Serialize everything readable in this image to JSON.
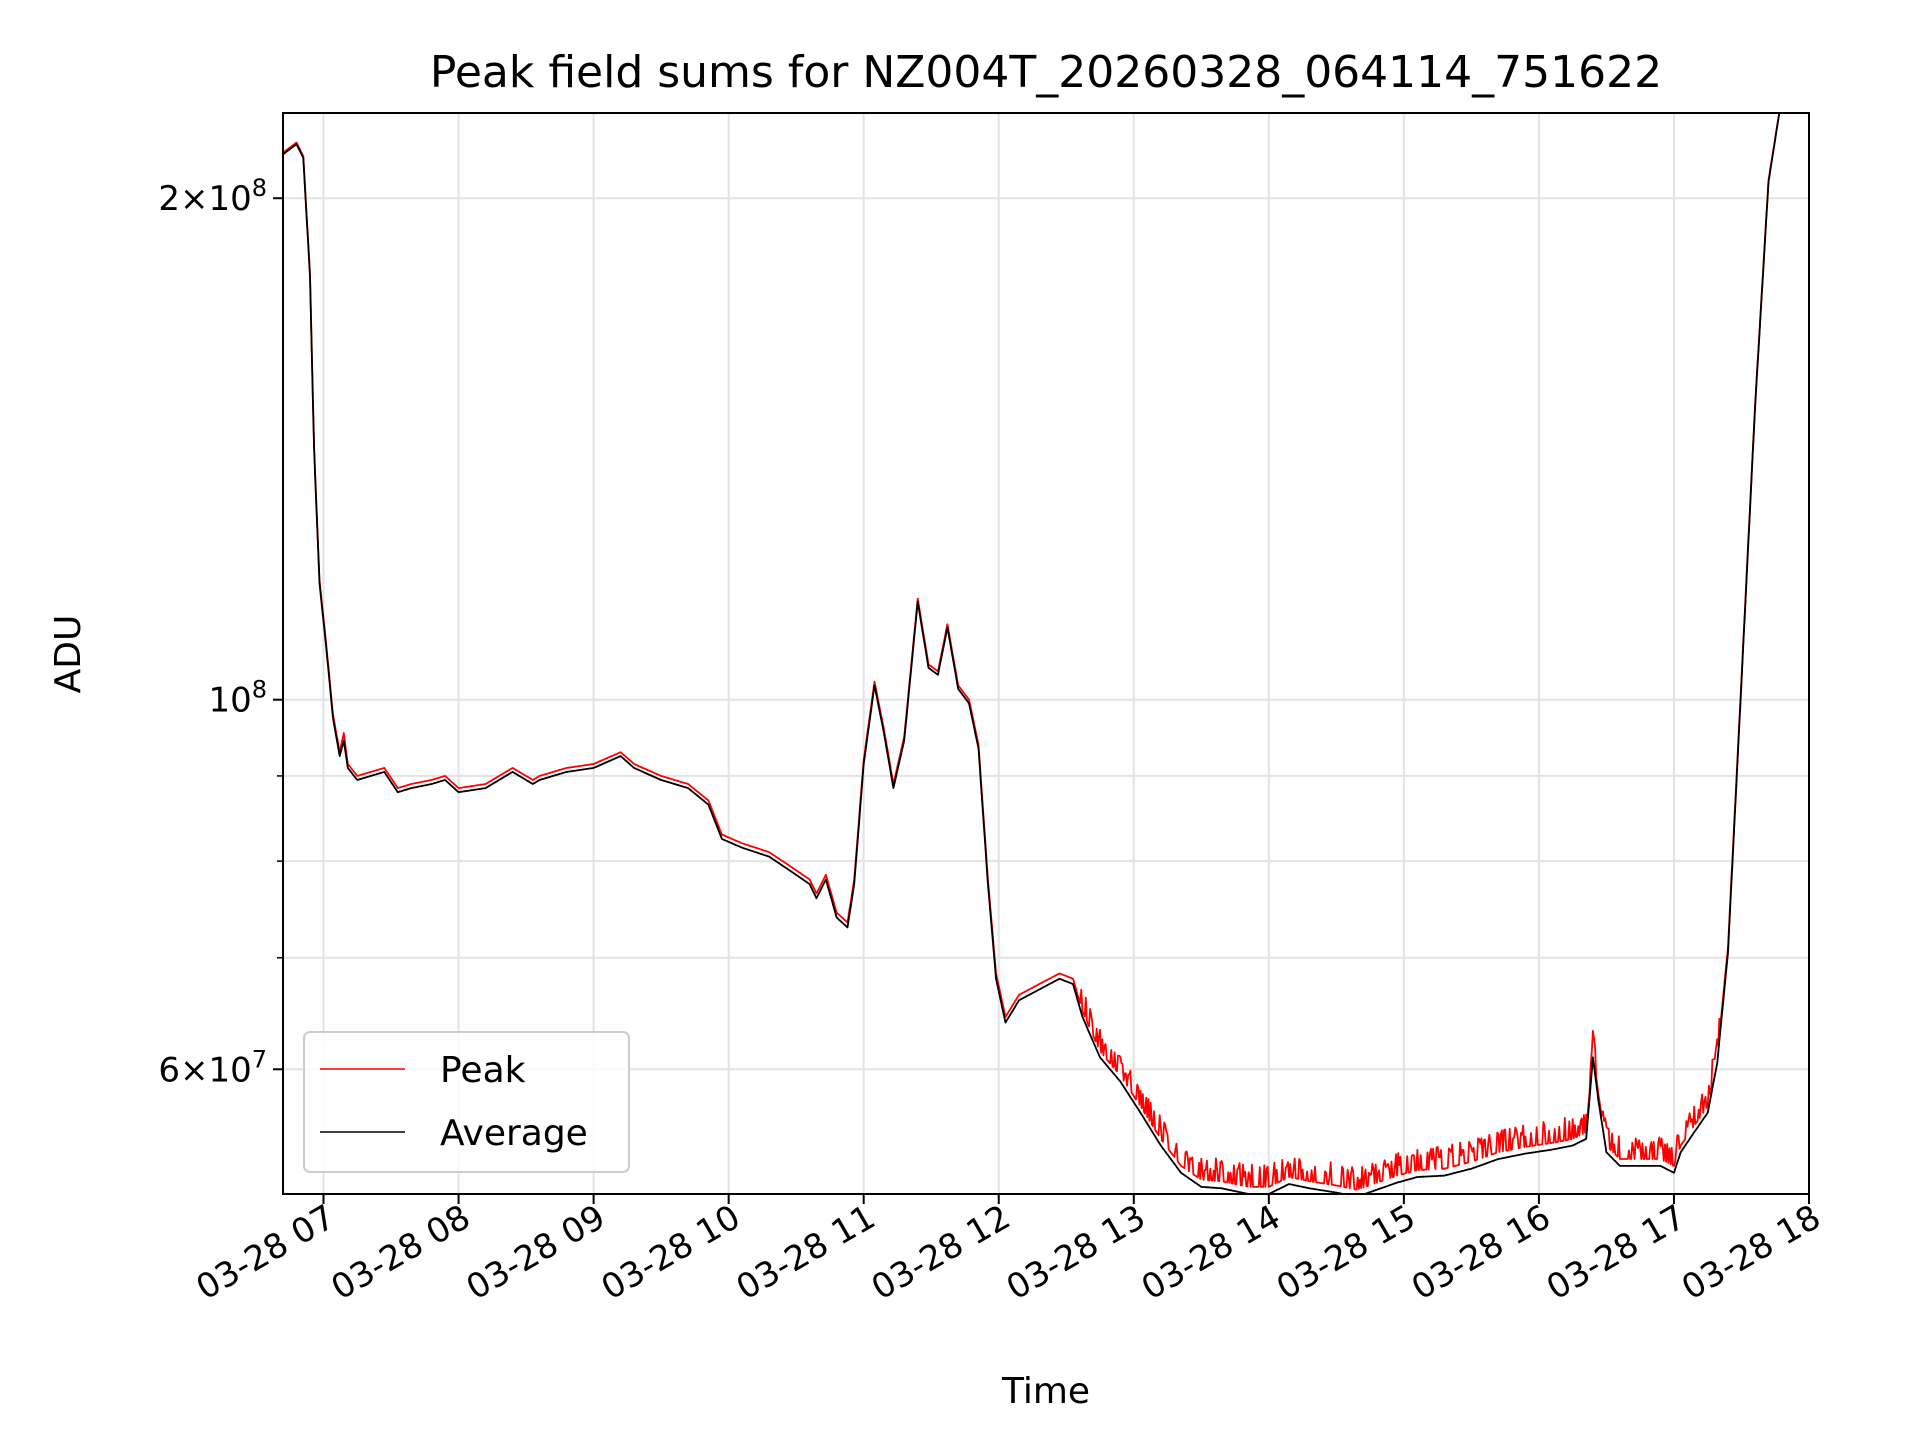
{
  "chart_data": {
    "type": "line",
    "title": "Peak field sums for NZ004T_20260328_064114_751622",
    "xlabel": "Time",
    "ylabel": "ADU",
    "yscale": "log",
    "ylim": [
      50500000,
      225000000
    ],
    "xlim": [
      6.7,
      18.0
    ],
    "grid": true,
    "legend_position": "lower-left",
    "x_ticks": [
      {
        "value": 7,
        "label": "03-28 07"
      },
      {
        "value": 8,
        "label": "03-28 08"
      },
      {
        "value": 9,
        "label": "03-28 09"
      },
      {
        "value": 10,
        "label": "03-28 10"
      },
      {
        "value": 11,
        "label": "03-28 11"
      },
      {
        "value": 12,
        "label": "03-28 12"
      },
      {
        "value": 13,
        "label": "03-28 13"
      },
      {
        "value": 14,
        "label": "03-28 14"
      },
      {
        "value": 15,
        "label": "03-28 15"
      },
      {
        "value": 16,
        "label": "03-28 16"
      },
      {
        "value": 17,
        "label": "03-28 17"
      },
      {
        "value": 18,
        "label": "03-28 18"
      }
    ],
    "y_major_ticks": [
      {
        "value": 60000000,
        "base": "6",
        "exp": "7"
      },
      {
        "value": 100000000,
        "base": "",
        "exp": "8"
      },
      {
        "value": 200000000,
        "base": "2",
        "exp": "8"
      }
    ],
    "y_minor_ticks": [
      70000000,
      80000000,
      90000000
    ],
    "series": [
      {
        "name": "Peak",
        "color": "#ff0000",
        "noise": true,
        "points": [
          [
            6.7,
            213000000
          ],
          [
            6.8,
            216000000
          ],
          [
            6.85,
            212000000
          ],
          [
            6.9,
            180000000
          ],
          [
            6.93,
            142000000
          ],
          [
            6.97,
            118000000
          ],
          [
            7.02,
            108000000
          ],
          [
            7.07,
            98000000
          ],
          [
            7.12,
            93000000
          ],
          [
            7.15,
            95500000
          ],
          [
            7.18,
            91500000
          ],
          [
            7.25,
            90000000
          ],
          [
            7.35,
            90500000
          ],
          [
            7.45,
            91000000
          ],
          [
            7.55,
            88500000
          ],
          [
            7.65,
            89000000
          ],
          [
            7.8,
            89500000
          ],
          [
            7.9,
            90000000
          ],
          [
            8.0,
            88500000
          ],
          [
            8.2,
            89000000
          ],
          [
            8.4,
            91000000
          ],
          [
            8.55,
            89500000
          ],
          [
            8.6,
            90000000
          ],
          [
            8.8,
            91000000
          ],
          [
            9.0,
            91500000
          ],
          [
            9.2,
            93000000
          ],
          [
            9.3,
            91500000
          ],
          [
            9.5,
            90000000
          ],
          [
            9.7,
            89000000
          ],
          [
            9.85,
            87000000
          ],
          [
            9.95,
            83000000
          ],
          [
            10.1,
            82000000
          ],
          [
            10.3,
            81000000
          ],
          [
            10.45,
            79500000
          ],
          [
            10.6,
            78000000
          ],
          [
            10.65,
            76500000
          ],
          [
            10.72,
            78500000
          ],
          [
            10.8,
            74500000
          ],
          [
            10.88,
            73500000
          ],
          [
            10.93,
            78000000
          ],
          [
            11.0,
            92000000
          ],
          [
            11.08,
            102500000
          ],
          [
            11.15,
            96000000
          ],
          [
            11.22,
            89000000
          ],
          [
            11.3,
            95000000
          ],
          [
            11.4,
            115000000
          ],
          [
            11.48,
            105000000
          ],
          [
            11.55,
            104000000
          ],
          [
            11.62,
            111000000
          ],
          [
            11.7,
            102000000
          ],
          [
            11.78,
            100000000
          ],
          [
            11.85,
            94000000
          ],
          [
            11.92,
            78000000
          ],
          [
            11.98,
            68500000
          ],
          [
            12.05,
            64500000
          ],
          [
            12.15,
            66500000
          ],
          [
            12.3,
            67500000
          ],
          [
            12.45,
            68500000
          ],
          [
            12.55,
            68000000
          ],
          [
            12.62,
            65000000
          ],
          [
            12.75,
            61500000
          ],
          [
            12.9,
            59500000
          ],
          [
            13.05,
            57000000
          ],
          [
            13.2,
            54500000
          ],
          [
            13.35,
            52500000
          ],
          [
            13.5,
            51500000
          ],
          [
            13.65,
            51400000
          ],
          [
            13.85,
            51000000
          ],
          [
            14.0,
            51000000
          ],
          [
            14.15,
            51700000
          ],
          [
            14.3,
            51400000
          ],
          [
            14.5,
            51100000
          ],
          [
            14.65,
            50800000
          ],
          [
            14.8,
            51300000
          ],
          [
            14.95,
            51800000
          ],
          [
            15.1,
            52200000
          ],
          [
            15.3,
            52300000
          ],
          [
            15.5,
            52800000
          ],
          [
            15.7,
            53500000
          ],
          [
            15.9,
            53900000
          ],
          [
            16.1,
            54200000
          ],
          [
            16.25,
            54500000
          ],
          [
            16.35,
            55000000
          ],
          [
            16.4,
            61500000
          ],
          [
            16.44,
            58000000
          ],
          [
            16.5,
            54000000
          ],
          [
            16.6,
            53000000
          ],
          [
            16.75,
            53000000
          ],
          [
            16.9,
            53000000
          ],
          [
            17.0,
            52500000
          ],
          [
            17.05,
            54000000
          ],
          [
            17.15,
            55500000
          ],
          [
            17.25,
            57000000
          ],
          [
            17.32,
            61000000
          ],
          [
            17.4,
            71000000
          ],
          [
            17.5,
            103000000
          ],
          [
            17.6,
            150000000
          ],
          [
            17.7,
            205000000
          ],
          [
            17.78,
            225000000
          ],
          [
            17.9,
            225000000
          ]
        ]
      },
      {
        "name": "Average",
        "color": "#000000",
        "noise": false,
        "points": [
          [
            6.7,
            212500000
          ],
          [
            6.8,
            215500000
          ],
          [
            6.85,
            211500000
          ],
          [
            6.9,
            179500000
          ],
          [
            6.93,
            141500000
          ],
          [
            6.97,
            117500000
          ],
          [
            7.02,
            107500000
          ],
          [
            7.07,
            97500000
          ],
          [
            7.12,
            92500000
          ],
          [
            7.15,
            94500000
          ],
          [
            7.18,
            91000000
          ],
          [
            7.25,
            89500000
          ],
          [
            7.35,
            90000000
          ],
          [
            7.45,
            90500000
          ],
          [
            7.55,
            88000000
          ],
          [
            7.65,
            88500000
          ],
          [
            7.8,
            89000000
          ],
          [
            7.9,
            89500000
          ],
          [
            8.0,
            88000000
          ],
          [
            8.2,
            88500000
          ],
          [
            8.4,
            90500000
          ],
          [
            8.55,
            89000000
          ],
          [
            8.6,
            89500000
          ],
          [
            8.8,
            90500000
          ],
          [
            9.0,
            91000000
          ],
          [
            9.2,
            92500000
          ],
          [
            9.3,
            91000000
          ],
          [
            9.5,
            89500000
          ],
          [
            9.7,
            88500000
          ],
          [
            9.85,
            86500000
          ],
          [
            9.95,
            82500000
          ],
          [
            10.1,
            81500000
          ],
          [
            10.3,
            80500000
          ],
          [
            10.45,
            79000000
          ],
          [
            10.6,
            77500000
          ],
          [
            10.65,
            76000000
          ],
          [
            10.72,
            78000000
          ],
          [
            10.8,
            74000000
          ],
          [
            10.88,
            73000000
          ],
          [
            10.93,
            77500000
          ],
          [
            11.0,
            91500000
          ],
          [
            11.08,
            102000000
          ],
          [
            11.15,
            95500000
          ],
          [
            11.22,
            88500000
          ],
          [
            11.3,
            94500000
          ],
          [
            11.4,
            114500000
          ],
          [
            11.48,
            104500000
          ],
          [
            11.55,
            103500000
          ],
          [
            11.62,
            110500000
          ],
          [
            11.7,
            101500000
          ],
          [
            11.78,
            99500000
          ],
          [
            11.85,
            93500000
          ],
          [
            11.92,
            77500000
          ],
          [
            11.98,
            68000000
          ],
          [
            12.05,
            64000000
          ],
          [
            12.15,
            66000000
          ],
          [
            12.3,
            67000000
          ],
          [
            12.45,
            68000000
          ],
          [
            12.55,
            67500000
          ],
          [
            12.62,
            64500000
          ],
          [
            12.75,
            61000000
          ],
          [
            12.9,
            59000000
          ],
          [
            13.05,
            56500000
          ],
          [
            13.2,
            54000000
          ],
          [
            13.35,
            52000000
          ],
          [
            13.5,
            51000000
          ],
          [
            13.65,
            50900000
          ],
          [
            13.85,
            50500000
          ],
          [
            14.0,
            50500000
          ],
          [
            14.15,
            51200000
          ],
          [
            14.3,
            50900000
          ],
          [
            14.5,
            50600000
          ],
          [
            14.65,
            50300000
          ],
          [
            14.8,
            50800000
          ],
          [
            14.95,
            51300000
          ],
          [
            15.1,
            51700000
          ],
          [
            15.3,
            51800000
          ],
          [
            15.5,
            52300000
          ],
          [
            15.7,
            53000000
          ],
          [
            15.9,
            53400000
          ],
          [
            16.1,
            53700000
          ],
          [
            16.25,
            54000000
          ],
          [
            16.35,
            54500000
          ],
          [
            16.4,
            61000000
          ],
          [
            16.44,
            57500000
          ],
          [
            16.5,
            53500000
          ],
          [
            16.6,
            52500000
          ],
          [
            16.75,
            52500000
          ],
          [
            16.9,
            52500000
          ],
          [
            17.0,
            52000000
          ],
          [
            17.05,
            53500000
          ],
          [
            17.15,
            55000000
          ],
          [
            17.25,
            56500000
          ],
          [
            17.32,
            60500000
          ],
          [
            17.4,
            70500000
          ],
          [
            17.5,
            102500000
          ],
          [
            17.6,
            149500000
          ],
          [
            17.7,
            204500000
          ],
          [
            17.78,
            225000000
          ],
          [
            17.9,
            225000000
          ]
        ]
      }
    ]
  }
}
